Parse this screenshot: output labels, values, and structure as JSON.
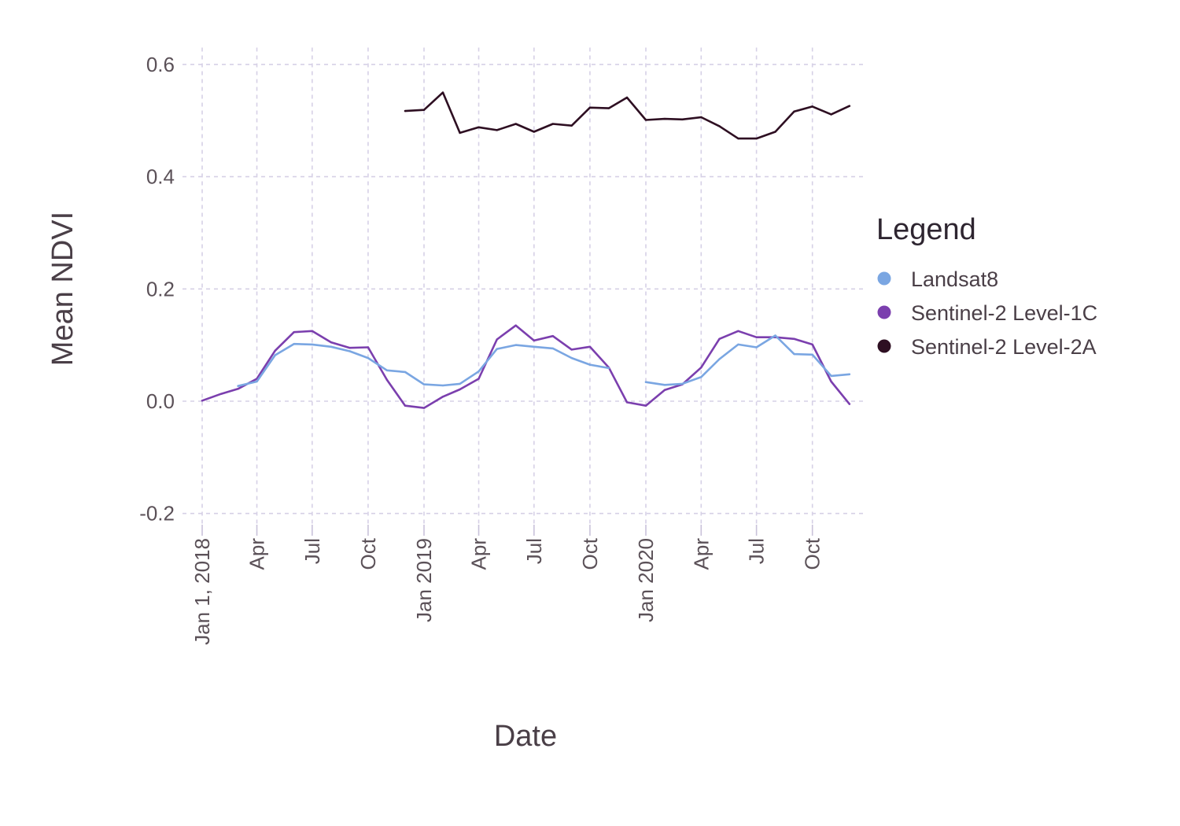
{
  "chart_data": {
    "type": "line",
    "title": "",
    "xlabel": "Date",
    "ylabel": "Mean NDVI",
    "xlim": [
      "2018-01-01",
      "2020-12-31"
    ],
    "ylim": [
      -0.22,
      0.63
    ],
    "grid": true,
    "legend": {
      "title": "Legend",
      "placement": "right"
    },
    "y_ticks": [
      {
        "value": 0.6,
        "label": "0.6"
      },
      {
        "value": 0.4,
        "label": "0.4"
      },
      {
        "value": 0.2,
        "label": "0.2"
      },
      {
        "value": 0.0,
        "label": "0.0"
      },
      {
        "value": -0.2,
        "label": "-0.2"
      }
    ],
    "x_ticks": [
      {
        "date": "2018-01-01",
        "label": "Jan 1, 2018"
      },
      {
        "date": "2018-04-01",
        "label": "Apr"
      },
      {
        "date": "2018-07-01",
        "label": "Jul"
      },
      {
        "date": "2018-10-01",
        "label": "Oct"
      },
      {
        "date": "2019-01-01",
        "label": "Jan 2019"
      },
      {
        "date": "2019-04-01",
        "label": "Apr"
      },
      {
        "date": "2019-07-01",
        "label": "Jul"
      },
      {
        "date": "2019-10-01",
        "label": "Oct"
      },
      {
        "date": "2020-01-01",
        "label": "Jan 2020"
      },
      {
        "date": "2020-04-01",
        "label": "Apr"
      },
      {
        "date": "2020-07-01",
        "label": "Jul"
      },
      {
        "date": "2020-10-01",
        "label": "Oct"
      }
    ],
    "series": [
      {
        "name": "Sentinel-2 Level-2A",
        "color": "#2e0f22",
        "points": [
          {
            "x": "2018-12-01",
            "y": 0.517
          },
          {
            "x": "2019-01-01",
            "y": 0.519
          },
          {
            "x": "2019-02-01",
            "y": 0.55
          },
          {
            "x": "2019-03-01",
            "y": 0.478
          },
          {
            "x": "2019-04-01",
            "y": 0.488
          },
          {
            "x": "2019-05-01",
            "y": 0.483
          },
          {
            "x": "2019-06-01",
            "y": 0.494
          },
          {
            "x": "2019-07-01",
            "y": 0.48
          },
          {
            "x": "2019-08-01",
            "y": 0.494
          },
          {
            "x": "2019-09-01",
            "y": 0.491
          },
          {
            "x": "2019-10-01",
            "y": 0.523
          },
          {
            "x": "2019-11-01",
            "y": 0.522
          },
          {
            "x": "2019-12-01",
            "y": 0.541
          },
          {
            "x": "2020-01-01",
            "y": 0.501
          },
          {
            "x": "2020-02-01",
            "y": 0.503
          },
          {
            "x": "2020-03-01",
            "y": 0.502
          },
          {
            "x": "2020-04-01",
            "y": 0.506
          },
          {
            "x": "2020-05-01",
            "y": 0.49
          },
          {
            "x": "2020-06-01",
            "y": 0.468
          },
          {
            "x": "2020-07-01",
            "y": 0.468
          },
          {
            "x": "2020-08-01",
            "y": 0.48
          },
          {
            "x": "2020-09-01",
            "y": 0.516
          },
          {
            "x": "2020-10-01",
            "y": 0.525
          },
          {
            "x": "2020-11-01",
            "y": 0.511
          },
          {
            "x": "2020-12-01",
            "y": 0.526
          }
        ]
      },
      {
        "name": "Sentinel-2 Level-1C",
        "color": "#7b3fae",
        "points": [
          {
            "x": "2018-01-01",
            "y": 0.001
          },
          {
            "x": "2018-02-01",
            "y": 0.013
          },
          {
            "x": "2018-03-01",
            "y": 0.022
          },
          {
            "x": "2018-04-01",
            "y": 0.04
          },
          {
            "x": "2018-05-01",
            "y": 0.09
          },
          {
            "x": "2018-06-01",
            "y": 0.123
          },
          {
            "x": "2018-07-01",
            "y": 0.125
          },
          {
            "x": "2018-08-01",
            "y": 0.105
          },
          {
            "x": "2018-09-01",
            "y": 0.095
          },
          {
            "x": "2018-10-01",
            "y": 0.096
          },
          {
            "x": "2018-11-01",
            "y": 0.038
          },
          {
            "x": "2018-12-01",
            "y": -0.008
          },
          {
            "x": "2019-01-01",
            "y": -0.012
          },
          {
            "x": "2019-02-01",
            "y": 0.008
          },
          {
            "x": "2019-03-01",
            "y": 0.021
          },
          {
            "x": "2019-04-01",
            "y": 0.04
          },
          {
            "x": "2019-05-01",
            "y": 0.11
          },
          {
            "x": "2019-06-01",
            "y": 0.135
          },
          {
            "x": "2019-07-01",
            "y": 0.108
          },
          {
            "x": "2019-08-01",
            "y": 0.116
          },
          {
            "x": "2019-09-01",
            "y": 0.092
          },
          {
            "x": "2019-10-01",
            "y": 0.097
          },
          {
            "x": "2019-11-01",
            "y": 0.06
          },
          {
            "x": "2019-12-01",
            "y": -0.002
          },
          {
            "x": "2020-01-01",
            "y": -0.008
          },
          {
            "x": "2020-02-01",
            "y": 0.02
          },
          {
            "x": "2020-03-01",
            "y": 0.03
          },
          {
            "x": "2020-04-01",
            "y": 0.06
          },
          {
            "x": "2020-05-01",
            "y": 0.111
          },
          {
            "x": "2020-06-01",
            "y": 0.125
          },
          {
            "x": "2020-07-01",
            "y": 0.114
          },
          {
            "x": "2020-08-01",
            "y": 0.114
          },
          {
            "x": "2020-09-01",
            "y": 0.111
          },
          {
            "x": "2020-10-01",
            "y": 0.101
          },
          {
            "x": "2020-11-01",
            "y": 0.035
          },
          {
            "x": "2020-12-01",
            "y": -0.005
          }
        ]
      },
      {
        "name": "Landsat8",
        "color": "#7aa6e2",
        "points": [
          {
            "x": "2018-03-01",
            "y": 0.027
          },
          {
            "x": "2018-04-01",
            "y": 0.035
          },
          {
            "x": "2018-05-01",
            "y": 0.082
          },
          {
            "x": "2018-06-01",
            "y": 0.102
          },
          {
            "x": "2018-07-01",
            "y": 0.101
          },
          {
            "x": "2018-08-01",
            "y": 0.097
          },
          {
            "x": "2018-09-01",
            "y": 0.089
          },
          {
            "x": "2018-10-01",
            "y": 0.077
          },
          {
            "x": "2018-11-01",
            "y": 0.055
          },
          {
            "x": "2018-12-01",
            "y": 0.052
          },
          {
            "x": "2019-01-01",
            "y": 0.03
          },
          {
            "x": "2019-02-01",
            "y": 0.028
          },
          {
            "x": "2019-03-01",
            "y": 0.031
          },
          {
            "x": "2019-04-01",
            "y": 0.053
          },
          {
            "x": "2019-05-01",
            "y": 0.093
          },
          {
            "x": "2019-06-01",
            "y": 0.1
          },
          {
            "x": "2019-07-01",
            "y": 0.097
          },
          {
            "x": "2019-08-01",
            "y": 0.094
          },
          {
            "x": "2019-09-01",
            "y": 0.077
          },
          {
            "x": "2019-10-01",
            "y": 0.065
          },
          {
            "x": "2019-11-01",
            "y": 0.059
          },
          null,
          {
            "x": "2020-01-01",
            "y": 0.034
          },
          {
            "x": "2020-02-01",
            "y": 0.029
          },
          {
            "x": "2020-03-01",
            "y": 0.031
          },
          {
            "x": "2020-04-01",
            "y": 0.043
          },
          {
            "x": "2020-05-01",
            "y": 0.075
          },
          {
            "x": "2020-06-01",
            "y": 0.101
          },
          {
            "x": "2020-07-01",
            "y": 0.096
          },
          {
            "x": "2020-08-01",
            "y": 0.117
          },
          {
            "x": "2020-09-01",
            "y": 0.084
          },
          {
            "x": "2020-10-01",
            "y": 0.083
          },
          {
            "x": "2020-11-01",
            "y": 0.045
          },
          {
            "x": "2020-12-01",
            "y": 0.048
          }
        ]
      }
    ],
    "legend_entries": [
      {
        "label": "Landsat8",
        "color": "#7aa6e2"
      },
      {
        "label": "Sentinel-2 Level-1C",
        "color": "#7b3fae"
      },
      {
        "label": "Sentinel-2 Level-2A",
        "color": "#2e0f22"
      }
    ]
  }
}
